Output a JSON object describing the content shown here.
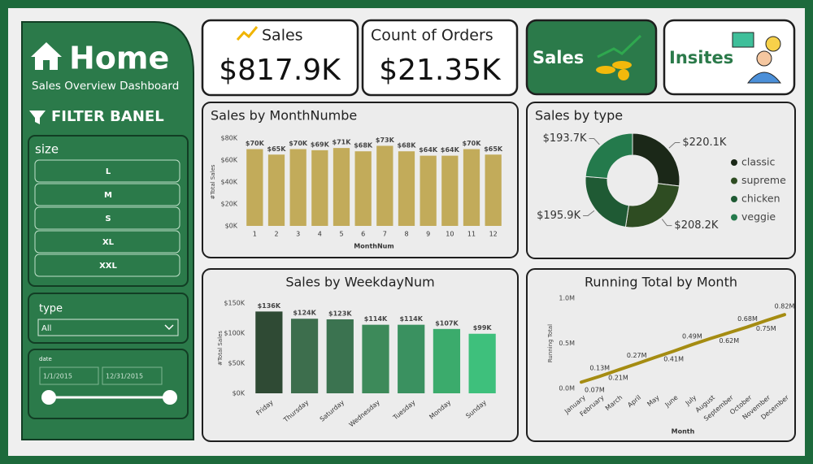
{
  "sidebar": {
    "title": "Home",
    "subtitle": "Sales Overview Dashboard",
    "filter_title": "FILTER BANEL",
    "size_label": "size",
    "size_options": [
      "L",
      "M",
      "S",
      "XL",
      "XXL"
    ],
    "type_label": "type",
    "type_value": "All",
    "date_label": "date",
    "date_start": "1/1/2015",
    "date_end": "12/31/2015"
  },
  "kpis": [
    {
      "label": "Sales",
      "value": "$817.9K"
    },
    {
      "label": "Count of Orders",
      "value": "$21.35K"
    }
  ],
  "nav": [
    "Sales",
    "Insites"
  ],
  "chart_data": [
    {
      "type": "bar",
      "title": "Sales by MonthNumbe",
      "categories": [
        "1",
        "2",
        "3",
        "4",
        "5",
        "6",
        "7",
        "8",
        "9",
        "10",
        "11",
        "12"
      ],
      "values": [
        70000,
        65000,
        70000,
        69000,
        71000,
        68000,
        73000,
        68000,
        64000,
        64000,
        70000,
        65000
      ],
      "value_labels": [
        "$70K",
        "$65K",
        "$70K",
        "$69K",
        "$71K",
        "$68K",
        "$73K",
        "$68K",
        "$64K",
        "$64K",
        "$70K",
        "$65K"
      ],
      "color": "#c2ab5a",
      "ylim": [
        0,
        80000
      ],
      "yticks": [
        {
          "value": 0,
          "label": "$0K"
        },
        {
          "value": 20000,
          "label": "$20K"
        },
        {
          "value": 40000,
          "label": "$40K"
        },
        {
          "value": 60000,
          "label": "$60K"
        },
        {
          "value": 80000,
          "label": "$80K"
        }
      ],
      "y_label": "#Total Sales",
      "x_label": "MonthNum"
    },
    {
      "type": "pie",
      "title": "Sales by type",
      "categories": [
        "classic",
        "supreme",
        "chicken",
        "veggie"
      ],
      "values": [
        220100,
        208200,
        195900,
        193700
      ],
      "value_labels": [
        "$220.1K",
        "$208.2K",
        "$195.9K",
        "$193.7K"
      ],
      "colors": [
        "#1b2818",
        "#2e4c22",
        "#1f5a34",
        "#247a4c"
      ],
      "legend": "right"
    },
    {
      "type": "bar",
      "title": "Sales by WeekdayNum",
      "categories": [
        "Friday",
        "Thursday",
        "Saturday",
        "Wednesday",
        "Tuesday",
        "Monday",
        "Sunday"
      ],
      "values": [
        136000,
        124000,
        123000,
        114000,
        114000,
        107000,
        99000
      ],
      "value_labels": [
        "$136K",
        "$124K",
        "$123K",
        "$114K",
        "$114K",
        "$107K",
        "$99K"
      ],
      "colors": [
        "#2f4a34",
        "#3d6e4d",
        "#3b7350",
        "#3d8a5a",
        "#3a9160",
        "#3bab6c",
        "#3ec07c"
      ],
      "ylim": [
        0,
        150000
      ],
      "yticks": [
        {
          "value": 0,
          "label": "$0K"
        },
        {
          "value": 50000,
          "label": "$50K"
        },
        {
          "value": 100000,
          "label": "$100K"
        },
        {
          "value": 150000,
          "label": "$150K"
        }
      ],
      "y_label": "#Total Sales"
    },
    {
      "type": "line",
      "title": "Running Total by Month",
      "categories": [
        "January",
        "February",
        "March",
        "April",
        "May",
        "June",
        "July",
        "August",
        "September",
        "October",
        "November",
        "December"
      ],
      "values": [
        70000,
        134000,
        205000,
        274000,
        345000,
        413000,
        486000,
        554000,
        618000,
        682000,
        752000,
        817900
      ],
      "value_labels": [
        "0.07M",
        "0.13M",
        "0.21M",
        "0.27M",
        null,
        "0.41M",
        "0.49M",
        null,
        "0.62M",
        "0.68M",
        "0.75M",
        "0.82M"
      ],
      "color": "#a58c12",
      "ylim": [
        0,
        1000000
      ],
      "yticks": [
        {
          "value": 0,
          "label": "0.0M"
        },
        {
          "value": 500000,
          "label": "0.5M"
        },
        {
          "value": 1000000,
          "label": "1.0M"
        }
      ],
      "y_label": "Running Total",
      "x_label": "Month"
    }
  ]
}
